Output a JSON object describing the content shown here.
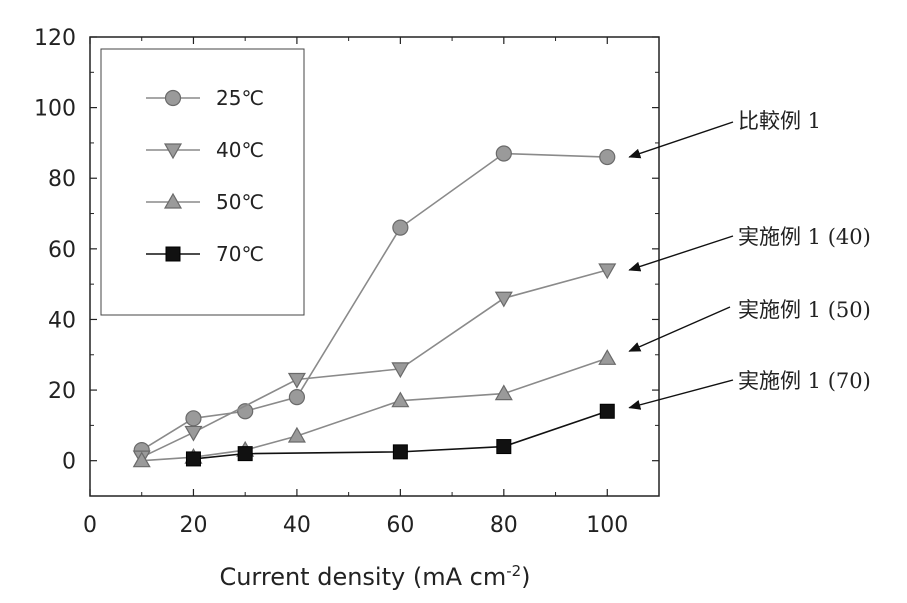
{
  "chart_data": {
    "type": "line",
    "title": "",
    "xlabel": "Current density (mA cm",
    "xlabel_sup": "-2",
    "xlabel_close": ")",
    "ylabel": "",
    "xlim": [
      0,
      110
    ],
    "ylim": [
      -10,
      120
    ],
    "x_ticks": [
      0,
      20,
      40,
      60,
      80,
      100
    ],
    "y_ticks": [
      0,
      20,
      40,
      60,
      80,
      100,
      120
    ],
    "legend_position": "top-left",
    "series": [
      {
        "name": "25℃",
        "marker": "circle",
        "color": "#8a8a8a",
        "x": [
          10,
          20,
          30,
          40,
          60,
          80,
          100
        ],
        "y": [
          3,
          12,
          14,
          18,
          66,
          87,
          86
        ]
      },
      {
        "name": "40℃",
        "marker": "triangle-down",
        "color": "#8a8a8a",
        "x": [
          10,
          20,
          40,
          60,
          80,
          100
        ],
        "y": [
          1,
          8,
          23,
          26,
          46,
          54
        ]
      },
      {
        "name": "50℃",
        "marker": "triangle-up",
        "color": "#8a8a8a",
        "x": [
          10,
          20,
          30,
          40,
          60,
          80,
          100
        ],
        "y": [
          0,
          1,
          3,
          7,
          17,
          19,
          29
        ]
      },
      {
        "name": "70℃",
        "marker": "square",
        "color": "#111111",
        "x": [
          20,
          30,
          60,
          80,
          100
        ],
        "y": [
          0.5,
          2,
          2.5,
          4,
          14
        ]
      }
    ],
    "annotations": [
      {
        "text": "比較例 1",
        "target_x": 100,
        "target_y": 86
      },
      {
        "text": "実施例 1 (40)",
        "target_x": 100,
        "target_y": 54
      },
      {
        "text": "実施例 1 (50)",
        "target_x": 100,
        "target_y": 31
      },
      {
        "text": "実施例 1 (70)",
        "target_x": 100,
        "target_y": 15
      }
    ]
  }
}
